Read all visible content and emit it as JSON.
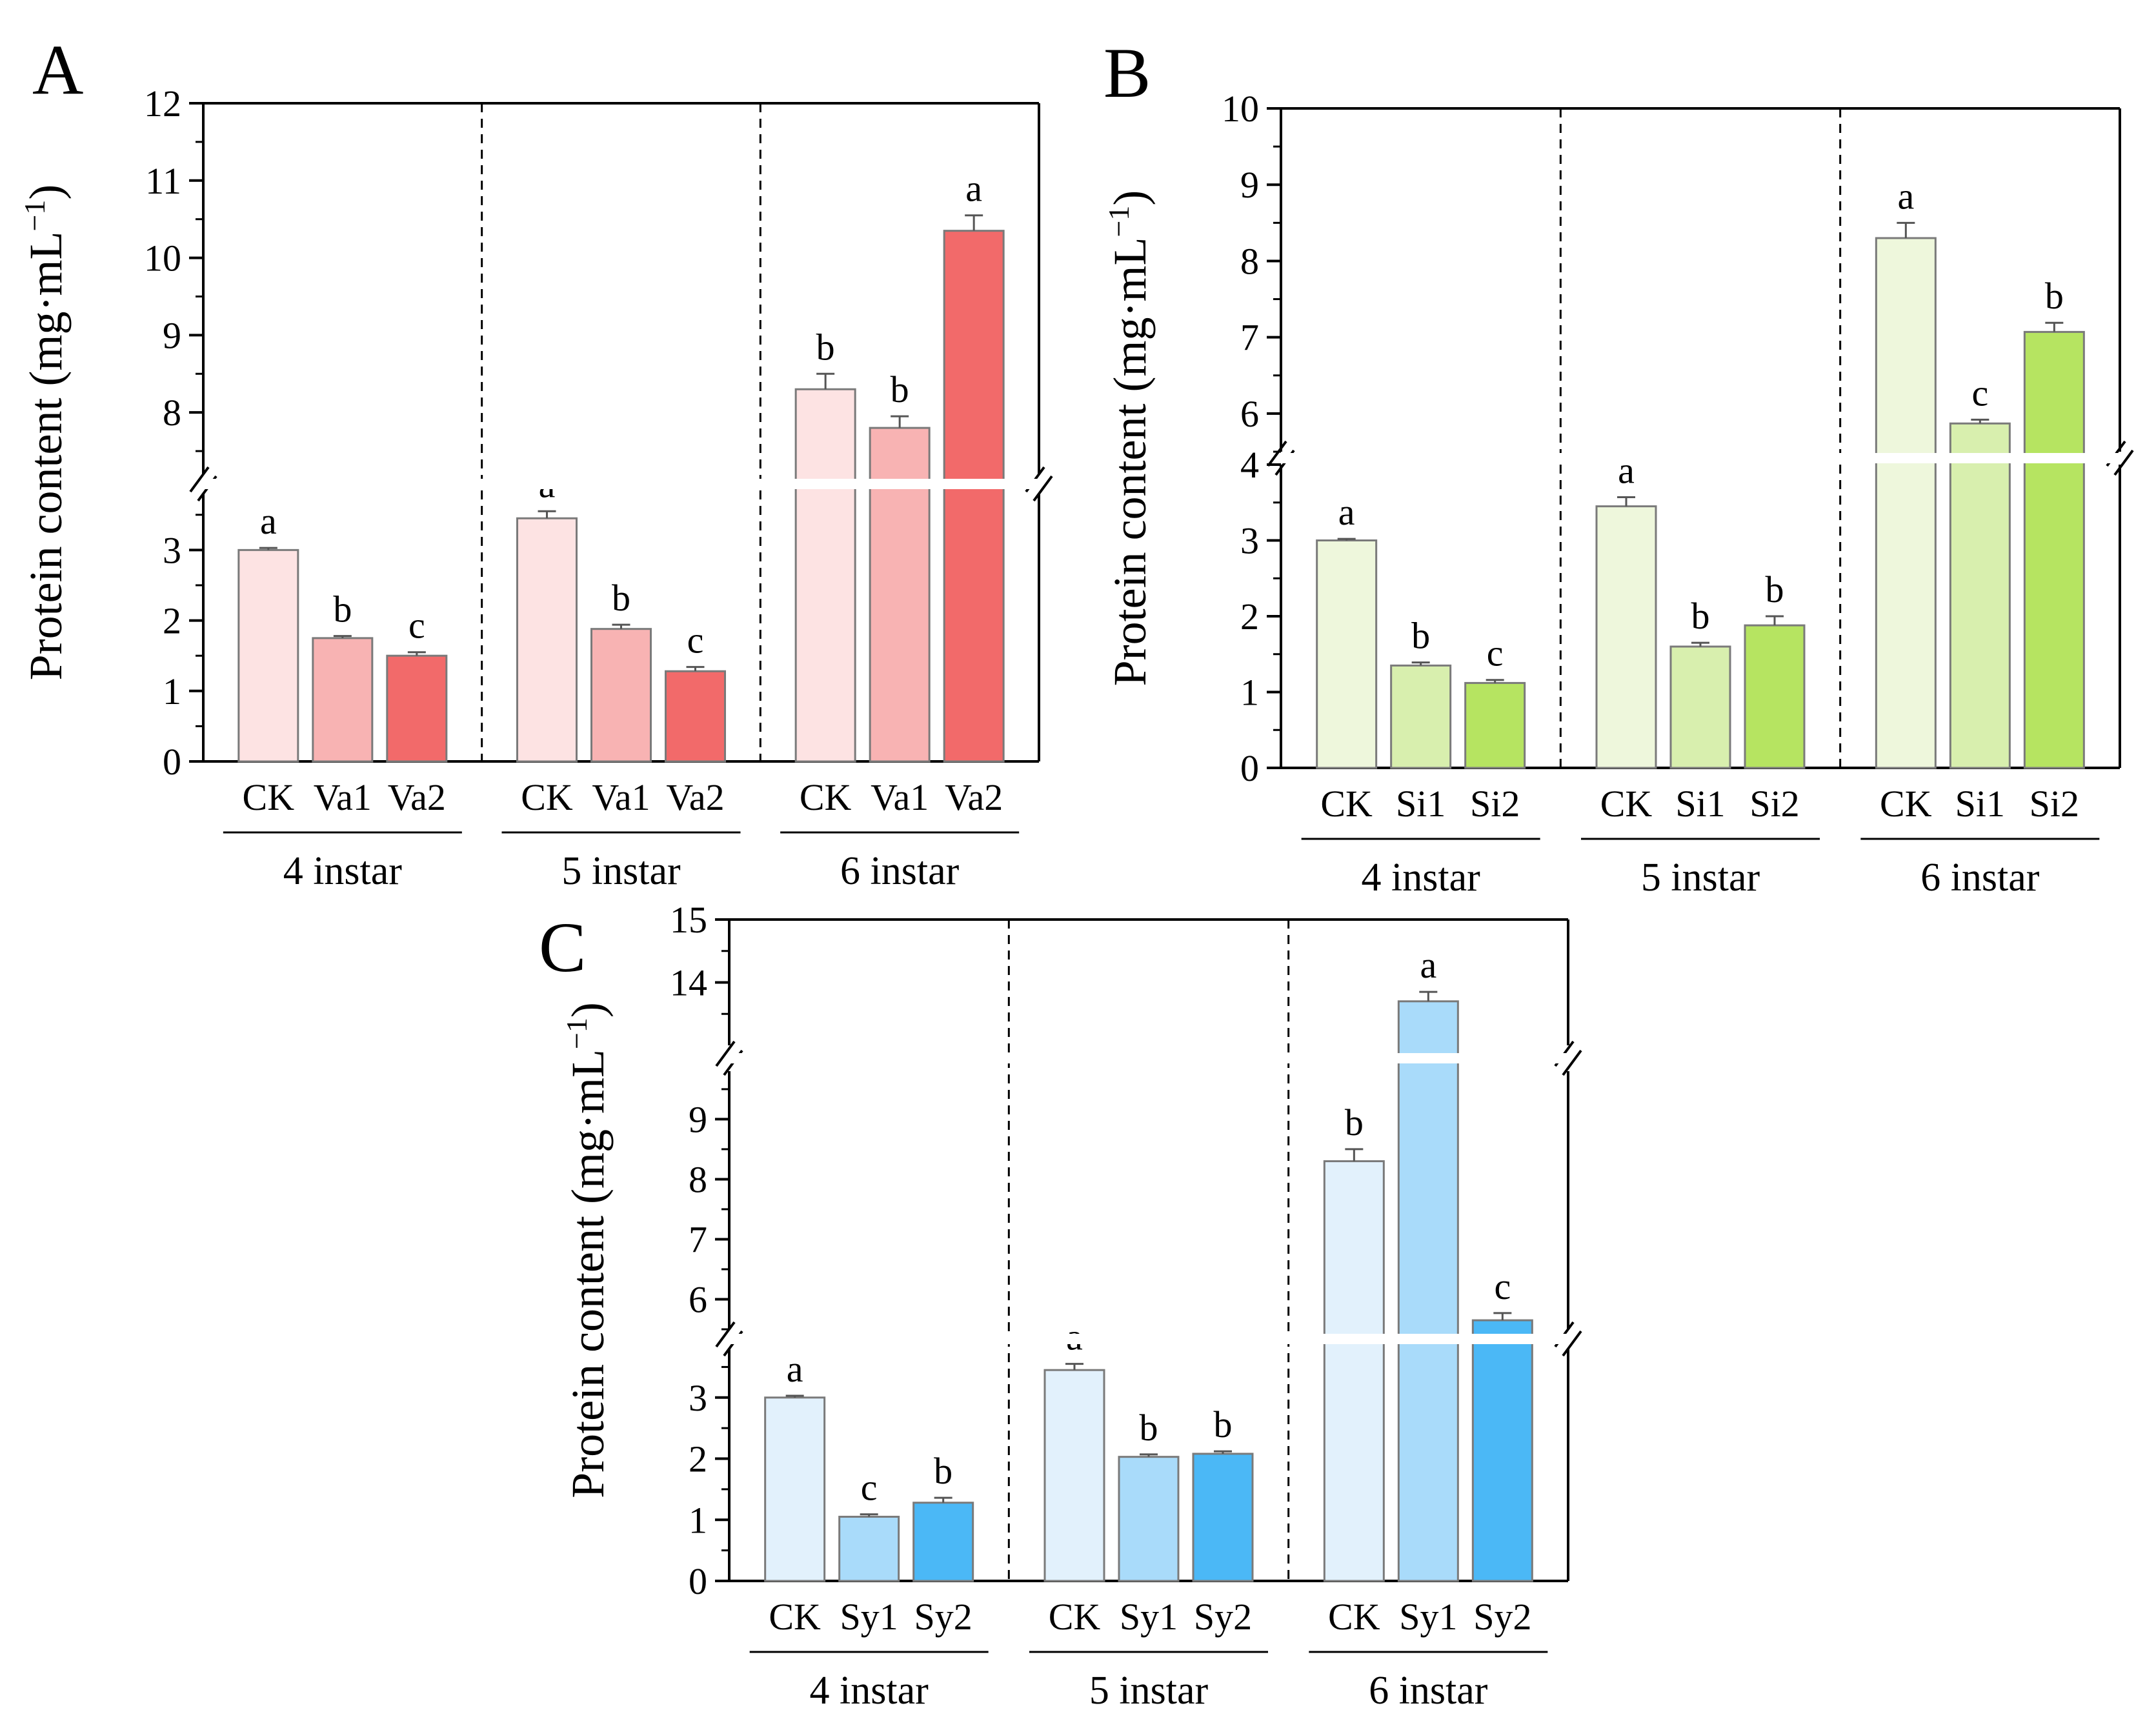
{
  "figure": {
    "ylabel_text": "Protein content (mg·mL",
    "ylabel_sup": "−1",
    "ylabel_close": ")"
  },
  "chart_data": [
    {
      "panel": "A",
      "type": "bar",
      "ylabel": "Protein content (mg·mL−1)",
      "ylim": [
        0,
        12
      ],
      "axis_break": {
        "lower_top": 3.8,
        "upper_bottom": 7.2
      },
      "y_ticks_lower": [
        0,
        1,
        2,
        3
      ],
      "y_ticks_upper": [
        8,
        9,
        10,
        11,
        12
      ],
      "groups": [
        {
          "label": "4 instar",
          "bars": [
            {
              "category": "CK",
              "value": 3.0,
              "error": 0.03,
              "sig": "a",
              "color": "#fde3e3"
            },
            {
              "category": "Va1",
              "value": 1.75,
              "error": 0.03,
              "sig": "b",
              "color": "#f8b3b3"
            },
            {
              "category": "Va2",
              "value": 1.5,
              "error": 0.05,
              "sig": "c",
              "color": "#f26a6a"
            }
          ]
        },
        {
          "label": "5 instar",
          "bars": [
            {
              "category": "CK",
              "value": 3.45,
              "error": 0.1,
              "sig": "a",
              "color": "#fde3e3"
            },
            {
              "category": "Va1",
              "value": 1.88,
              "error": 0.06,
              "sig": "b",
              "color": "#f8b3b3"
            },
            {
              "category": "Va2",
              "value": 1.28,
              "error": 0.06,
              "sig": "c",
              "color": "#f26a6a"
            }
          ]
        },
        {
          "label": "6 instar",
          "bars": [
            {
              "category": "CK",
              "value": 8.3,
              "error": 0.2,
              "sig": "b",
              "color": "#fde3e3"
            },
            {
              "category": "Va1",
              "value": 7.8,
              "error": 0.15,
              "sig": "b",
              "color": "#f8b3b3"
            },
            {
              "category": "Va2",
              "value": 10.35,
              "error": 0.2,
              "sig": "a",
              "color": "#f26a6a"
            }
          ]
        }
      ]
    },
    {
      "panel": "B",
      "type": "bar",
      "ylabel": "Protein content (mg·mL−1)",
      "ylim": [
        0,
        10
      ],
      "axis_break": {
        "lower_top": 4.0,
        "upper_bottom": 5.5
      },
      "y_ticks_lower": [
        0,
        1,
        2,
        3,
        4
      ],
      "y_ticks_upper": [
        6,
        7,
        8,
        9,
        10
      ],
      "groups": [
        {
          "label": "4 instar",
          "bars": [
            {
              "category": "CK",
              "value": 3.0,
              "error": 0.02,
              "sig": "a",
              "color": "#eef7dc"
            },
            {
              "category": "Si1",
              "value": 1.35,
              "error": 0.04,
              "sig": "b",
              "color": "#d8efae"
            },
            {
              "category": "Si2",
              "value": 1.12,
              "error": 0.04,
              "sig": "c",
              "color": "#b6e461"
            }
          ]
        },
        {
          "label": "5 instar",
          "bars": [
            {
              "category": "CK",
              "value": 3.45,
              "error": 0.12,
              "sig": "a",
              "color": "#eef7dc"
            },
            {
              "category": "Si1",
              "value": 1.6,
              "error": 0.05,
              "sig": "b",
              "color": "#d8efae"
            },
            {
              "category": "Si2",
              "value": 1.88,
              "error": 0.12,
              "sig": "b",
              "color": "#b6e461"
            }
          ]
        },
        {
          "label": "6 instar",
          "bars": [
            {
              "category": "CK",
              "value": 8.3,
              "error": 0.2,
              "sig": "a",
              "color": "#eef7dc"
            },
            {
              "category": "Si1",
              "value": 5.87,
              "error": 0.05,
              "sig": "c",
              "color": "#d8efae"
            },
            {
              "category": "Si2",
              "value": 7.07,
              "error": 0.12,
              "sig": "b",
              "color": "#b6e461"
            }
          ]
        }
      ]
    },
    {
      "panel": "C",
      "type": "bar",
      "ylabel": "Protein content (mg·mL−1)",
      "ylim": [
        0,
        15
      ],
      "axis_break": {
        "lower_top": 3.8,
        "mid_bottom": 5.5,
        "mid_top": 9.8,
        "upper_bottom": 13.0
      },
      "y_ticks_lower": [
        0,
        1,
        2,
        3
      ],
      "y_ticks_mid": [
        6,
        7,
        8,
        9
      ],
      "y_ticks_upper": [
        14,
        15
      ],
      "groups": [
        {
          "label": "4 instar",
          "bars": [
            {
              "category": "CK",
              "value": 3.0,
              "error": 0.03,
              "sig": "a",
              "color": "#e2f1fc"
            },
            {
              "category": "Sy1",
              "value": 1.05,
              "error": 0.04,
              "sig": "c",
              "color": "#a9dbfa"
            },
            {
              "category": "Sy2",
              "value": 1.28,
              "error": 0.08,
              "sig": "b",
              "color": "#4bb8f6"
            }
          ]
        },
        {
          "label": "5 instar",
          "bars": [
            {
              "category": "CK",
              "value": 3.45,
              "error": 0.1,
              "sig": "a",
              "color": "#e2f1fc"
            },
            {
              "category": "Sy1",
              "value": 2.03,
              "error": 0.04,
              "sig": "b",
              "color": "#a9dbfa"
            },
            {
              "category": "Sy2",
              "value": 2.08,
              "error": 0.04,
              "sig": "b",
              "color": "#4bb8f6"
            }
          ]
        },
        {
          "label": "6 instar",
          "bars": [
            {
              "category": "CK",
              "value": 8.3,
              "error": 0.2,
              "sig": "b",
              "color": "#e2f1fc"
            },
            {
              "category": "Sy1",
              "value": 13.7,
              "error": 0.15,
              "sig": "a",
              "color": "#a9dbfa"
            },
            {
              "category": "Sy2",
              "value": 5.65,
              "error": 0.12,
              "sig": "c",
              "color": "#4bb8f6"
            }
          ]
        }
      ]
    }
  ]
}
